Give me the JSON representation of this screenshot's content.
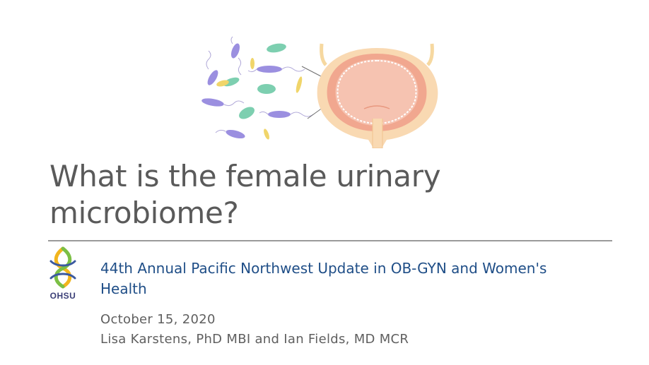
{
  "slide": {
    "title": "What is the female urinary microbiome?",
    "event": "44th Annual Pacific Northwest Update in OB-GYN and Women's Health",
    "date": "October 15, 2020",
    "authors": "Lisa Karstens, PhD MBI and Ian Fields, MD MCR",
    "logo_text": "OHSU"
  },
  "icons": {
    "illustration": "bacteria-and-bladder-illustration",
    "logo": "ohsu-logo"
  },
  "colors": {
    "title": "#5a5a5a",
    "event": "#1f4e87",
    "body": "#5f5f5f",
    "bacteria_purple": "#9b8fe0",
    "bacteria_teal": "#7dcfb0",
    "bacteria_yellow": "#f0d56a",
    "bladder_pink": "#f4b8a6",
    "bladder_outline": "#f6d8a0"
  }
}
